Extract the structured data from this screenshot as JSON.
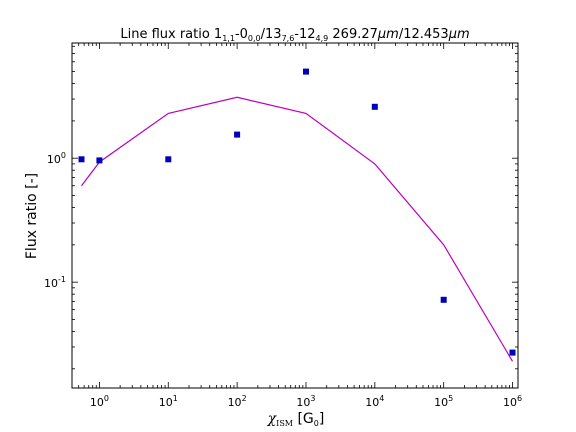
{
  "chart_data": {
    "type": "scatter",
    "title": "Line flux ratio 1₁,₁-0₀,₀/13₇,₆-12₄,₉ 269.27μm/12.453μm",
    "title_parts": {
      "t1": "Line flux ratio 1",
      "s1": "1,1",
      "t2": "-0",
      "s2": "0,0",
      "t3": "/13",
      "s3": "7,6",
      "t4": "-12",
      "s4": "4,9",
      "t5": " 269.27",
      "u1": "μm",
      "t6": "/12.453",
      "u2": "μm"
    },
    "xlabel": "χISM [G0]",
    "xlabel_parts": {
      "chi": "χ",
      "sub": "ISM",
      "open": " [G",
      "sub0": "0",
      "close": "]"
    },
    "ylabel": "Flux ratio [-]",
    "x_scale": "log",
    "y_scale": "log",
    "xlim": [
      0.4,
      1200000
    ],
    "ylim": [
      0.014,
      8.5
    ],
    "x_ticks": [
      {
        "base": "10",
        "exp": "0",
        "value": 1
      },
      {
        "base": "10",
        "exp": "1",
        "value": 10
      },
      {
        "base": "10",
        "exp": "2",
        "value": 100
      },
      {
        "base": "10",
        "exp": "3",
        "value": 1000
      },
      {
        "base": "10",
        "exp": "4",
        "value": 10000
      },
      {
        "base": "10",
        "exp": "5",
        "value": 100000
      },
      {
        "base": "10",
        "exp": "6",
        "value": 1000000
      }
    ],
    "y_ticks": [
      {
        "base": "10",
        "exp": "0",
        "value": 1
      },
      {
        "base": "10",
        "exp": "-1",
        "value": 0.1
      }
    ],
    "grid": false,
    "legend": "none",
    "series": [
      {
        "kind": "markers",
        "marker": "square",
        "color": "#0000bb",
        "x": [
          0.55,
          1,
          10,
          100,
          1000,
          10000,
          100000,
          1000000
        ],
        "y": [
          0.98,
          0.96,
          0.98,
          1.55,
          5.0,
          2.6,
          0.072,
          0.027
        ]
      },
      {
        "kind": "line",
        "color": "#bb00bb",
        "x": [
          0.55,
          1,
          10,
          100,
          1000,
          10000,
          100000,
          1000000
        ],
        "y": [
          0.6,
          0.93,
          2.3,
          3.1,
          2.3,
          0.9,
          0.2,
          0.023
        ]
      }
    ]
  }
}
